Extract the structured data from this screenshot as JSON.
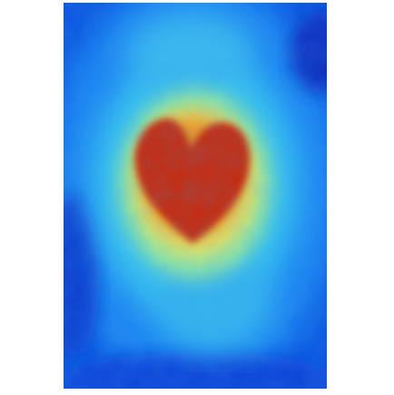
{
  "image": {
    "kind": "elevation-heatmap",
    "colormap": "jet",
    "colors": {
      "background": "#ffffff",
      "low": "#0a3fd6",
      "low_mid": "#1a7ff0",
      "mid": "#38c6f0",
      "mid_high": "#8fe8a0",
      "high_yellow": "#f2e25a",
      "high_orange": "#f08a1e",
      "peak": "#c92a0a"
    }
  }
}
